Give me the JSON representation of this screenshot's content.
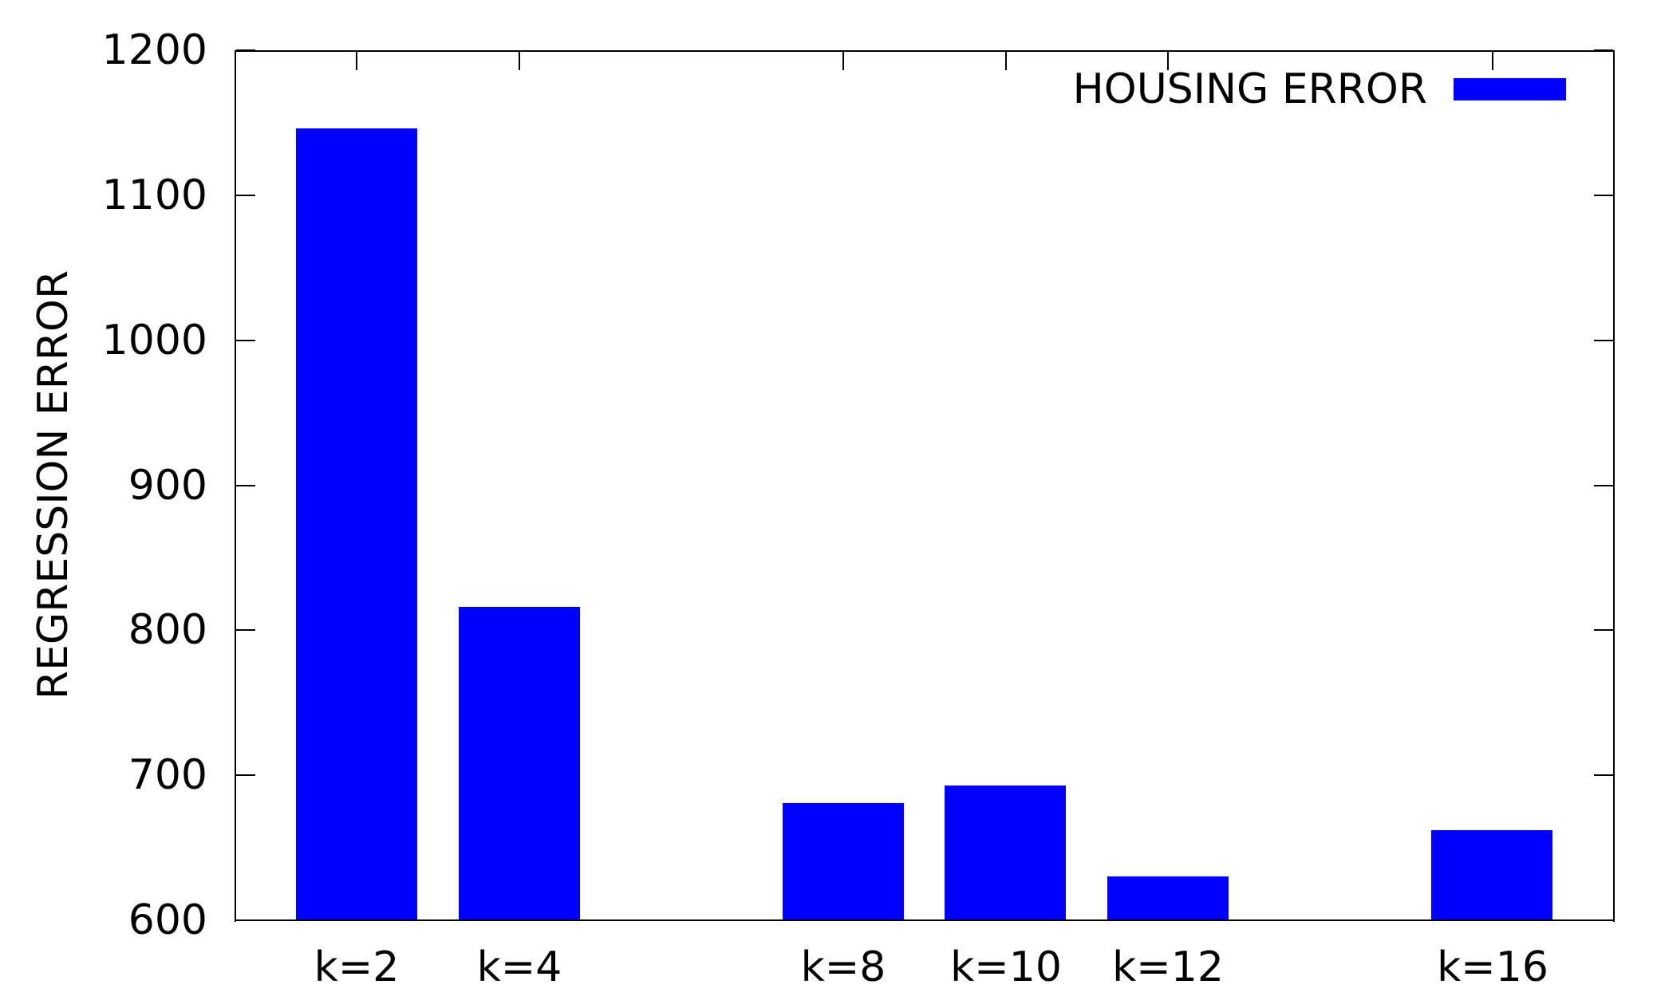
{
  "chart_data": {
    "type": "bar",
    "title": "",
    "series": [
      {
        "name": "HOUSING ERROR",
        "color": "#0000ff",
        "values": [
          1146,
          816,
          681,
          693,
          630,
          662
        ]
      }
    ],
    "categories": [
      "k=2",
      "k=4",
      "k=8",
      "k=10",
      "k=12",
      "k=16"
    ],
    "x_values": [
      2,
      4,
      8,
      10,
      12,
      16
    ],
    "values": [
      1146,
      816,
      681,
      693,
      630,
      662
    ],
    "xlabel": "",
    "ylabel": "REGRESSION ERROR",
    "ylim": [
      600,
      1200
    ],
    "yticks": [
      600,
      700,
      800,
      900,
      1000,
      1100,
      1200
    ],
    "ytick_labels": [
      "600",
      "700",
      "800",
      "900",
      "1000",
      "1100",
      "1200"
    ],
    "xlim": [
      0.5,
      17.5
    ],
    "bar_width_units": 1.5,
    "legend_position": "top-right-inside",
    "grid": false,
    "bar_color": "#0000ff",
    "axis_color": "#000000",
    "background_color": "#ffffff"
  }
}
